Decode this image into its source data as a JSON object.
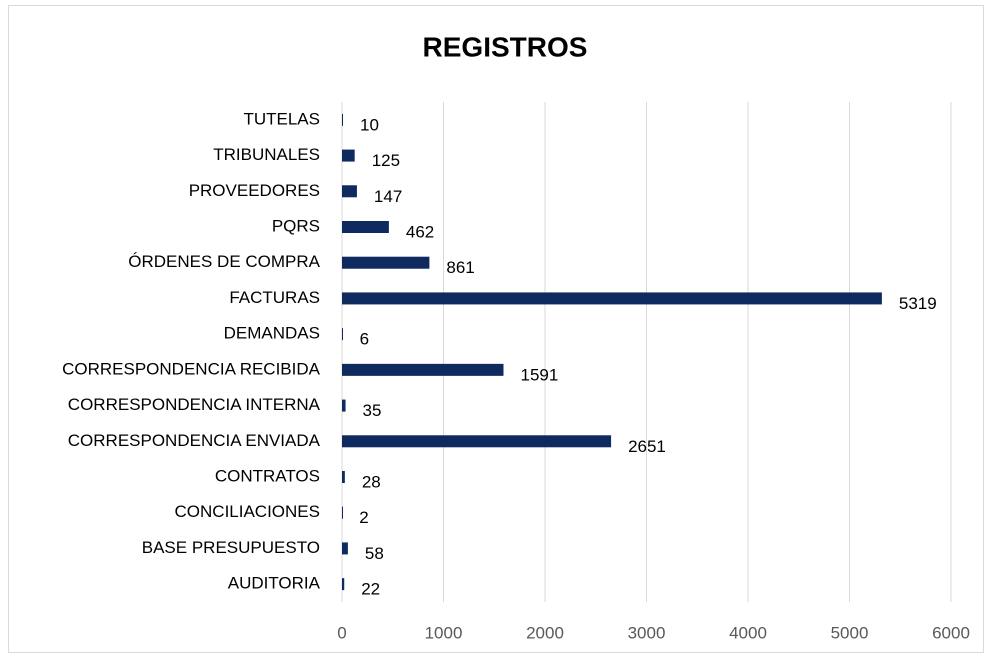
{
  "chart_data": {
    "type": "bar",
    "orientation": "horizontal",
    "title": "REGISTROS",
    "categories": [
      "TUTELAS",
      "TRIBUNALES",
      "PROVEEDORES",
      "PQRS",
      "ÓRDENES DE COMPRA",
      "FACTURAS",
      "DEMANDAS",
      "CORRESPONDENCIA RECIBIDA",
      "CORRESPONDENCIA INTERNA",
      "CORRESPONDENCIA ENVIADA",
      "CONTRATOS",
      "CONCILIACIONES",
      "BASE PRESUPUESTO",
      "AUDITORIA"
    ],
    "values": [
      10,
      125,
      147,
      462,
      861,
      5319,
      6,
      1591,
      35,
      2651,
      28,
      2,
      58,
      22
    ],
    "color": "#0e2a5e",
    "xlim": [
      0,
      6000
    ],
    "xticks": [
      0,
      1000,
      2000,
      3000,
      4000,
      5000,
      6000
    ],
    "grid": true
  }
}
